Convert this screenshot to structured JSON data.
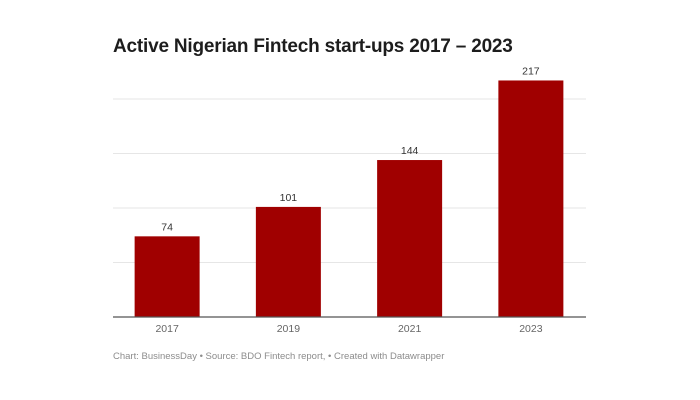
{
  "chart_data": {
    "type": "bar",
    "title": "Active Nigerian Fintech start-ups 2017 – 2023",
    "categories": [
      "2017",
      "2019",
      "2021",
      "2023"
    ],
    "values": [
      74,
      101,
      144,
      217
    ],
    "xlabel": "",
    "ylabel": "",
    "ylim": [
      0,
      217
    ],
    "gridlines": [
      50,
      100,
      150,
      200
    ],
    "grid": true,
    "y_tick_labels_shown": false,
    "data_labels": true,
    "bar_color": "#a00000"
  },
  "footer": "Chart: BusinessDay • Source: BDO Fintech report, • Created with Datawrapper"
}
